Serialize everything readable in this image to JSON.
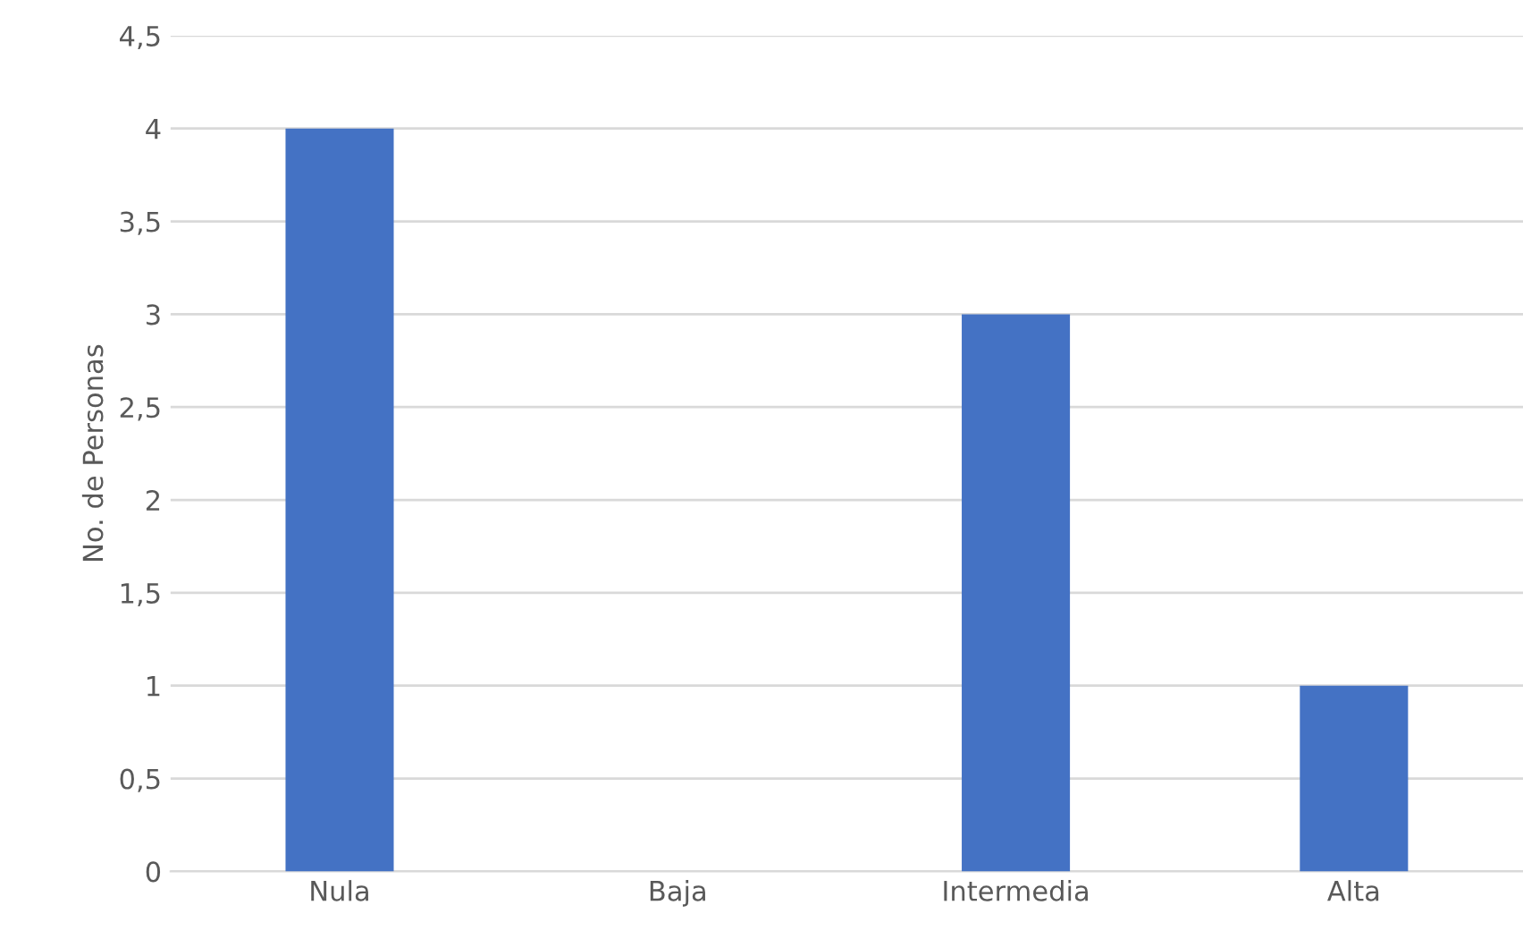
{
  "chart_data": {
    "type": "bar",
    "ylabel": "No. de Personas",
    "categories": [
      "Nula",
      "Baja",
      "Intermedia",
      "Alta"
    ],
    "values": [
      4,
      0,
      3,
      1
    ],
    "color": "#4472c4",
    "ylim": [
      0,
      4.5
    ],
    "yticks": [
      0,
      {
        "value": 0.5,
        "label": "0,5"
      },
      1,
      {
        "value": 1.5,
        "label": "1,5"
      },
      2,
      {
        "value": 2.5,
        "label": "2,5"
      },
      3,
      {
        "value": 3.5,
        "label": "3,5"
      },
      4,
      {
        "value": 4.5,
        "label": "4,5"
      }
    ],
    "grid": "y",
    "legend": false
  }
}
